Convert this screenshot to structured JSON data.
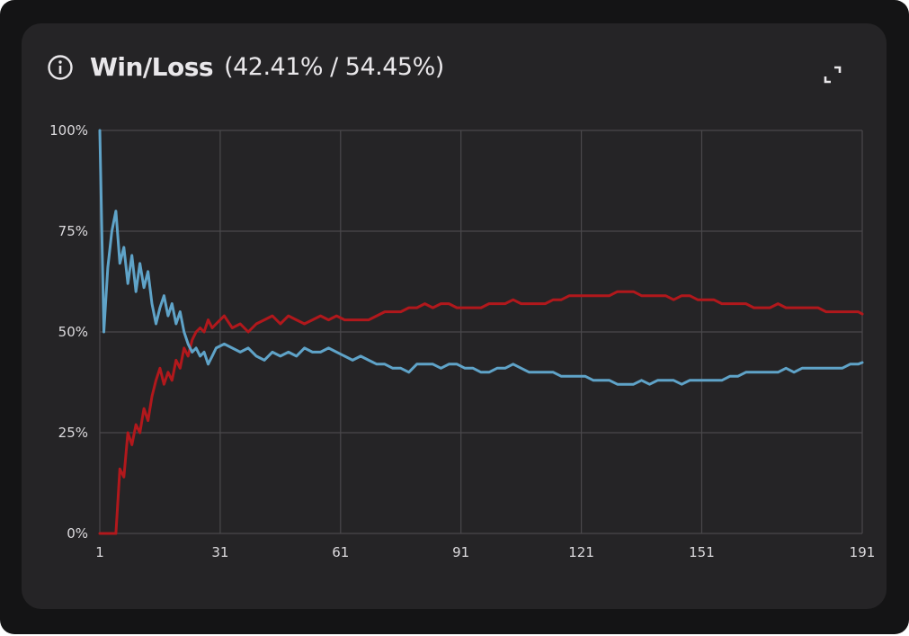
{
  "widget": {
    "title": "Win/Loss",
    "subtitle": "(42.41% / 54.45%)"
  },
  "colors": {
    "win": "#5fa3c8",
    "loss": "#b1181c",
    "grid": "#4a484b",
    "text": "#dcdadd"
  },
  "icons": {
    "info": "info-circle-icon",
    "expand": "expand-icon"
  },
  "chart_data": {
    "type": "line",
    "y_ticks": [
      "0%",
      "25%",
      "50%",
      "75%",
      "100%"
    ],
    "x_ticks": [
      "1",
      "31",
      "61",
      "91",
      "121",
      "151",
      "191"
    ],
    "ylim": [
      0,
      100
    ],
    "xlim": [
      1,
      191
    ],
    "grid": true,
    "series": [
      {
        "key": "win",
        "x": [
          1,
          2,
          3,
          4,
          5,
          6,
          7,
          8,
          9,
          10,
          11,
          12,
          13,
          14,
          15,
          16,
          17,
          18,
          19,
          20,
          21,
          22,
          23,
          24,
          25,
          26,
          27,
          28,
          29,
          30,
          32,
          34,
          36,
          38,
          40,
          42,
          44,
          46,
          48,
          50,
          52,
          54,
          56,
          58,
          60,
          62,
          64,
          66,
          68,
          70,
          72,
          74,
          76,
          78,
          80,
          82,
          84,
          86,
          88,
          90,
          92,
          94,
          96,
          98,
          100,
          102,
          104,
          106,
          108,
          110,
          112,
          114,
          116,
          118,
          120,
          122,
          124,
          126,
          128,
          130,
          132,
          134,
          136,
          138,
          140,
          142,
          144,
          146,
          148,
          150,
          152,
          154,
          156,
          158,
          160,
          162,
          164,
          166,
          168,
          170,
          172,
          174,
          176,
          178,
          180,
          182,
          184,
          186,
          188,
          190,
          191
        ],
        "values": [
          100,
          50,
          66,
          75,
          80,
          67,
          71,
          62,
          69,
          60,
          67,
          61,
          65,
          57,
          52,
          56,
          59,
          54,
          57,
          52,
          55,
          50,
          47,
          45,
          46,
          44,
          45,
          42,
          44,
          46,
          47,
          46,
          45,
          46,
          44,
          43,
          45,
          44,
          45,
          44,
          46,
          45,
          45,
          46,
          45,
          44,
          43,
          44,
          43,
          42,
          42,
          41,
          41,
          40,
          42,
          42,
          42,
          41,
          42,
          42,
          41,
          41,
          40,
          40,
          41,
          41,
          42,
          41,
          40,
          40,
          40,
          40,
          39,
          39,
          39,
          39,
          38,
          38,
          38,
          37,
          37,
          37,
          38,
          37,
          38,
          38,
          38,
          37,
          38,
          38,
          38,
          38,
          38,
          39,
          39,
          40,
          40,
          40,
          40,
          40,
          41,
          40,
          41,
          41,
          41,
          41,
          41,
          41,
          42,
          42,
          42.41
        ]
      },
      {
        "key": "loss",
        "x": [
          1,
          2,
          3,
          4,
          5,
          6,
          7,
          8,
          9,
          10,
          11,
          12,
          13,
          14,
          15,
          16,
          17,
          18,
          19,
          20,
          21,
          22,
          23,
          24,
          25,
          26,
          27,
          28,
          29,
          30,
          32,
          34,
          36,
          38,
          40,
          42,
          44,
          46,
          48,
          50,
          52,
          54,
          56,
          58,
          60,
          62,
          64,
          66,
          68,
          70,
          72,
          74,
          76,
          78,
          80,
          82,
          84,
          86,
          88,
          90,
          92,
          94,
          96,
          98,
          100,
          102,
          104,
          106,
          108,
          110,
          112,
          114,
          116,
          118,
          120,
          122,
          124,
          126,
          128,
          130,
          132,
          134,
          136,
          138,
          140,
          142,
          144,
          146,
          148,
          150,
          152,
          154,
          156,
          158,
          160,
          162,
          164,
          166,
          168,
          170,
          172,
          174,
          176,
          178,
          180,
          182,
          184,
          186,
          188,
          190,
          191
        ],
        "values": [
          0,
          0,
          0,
          0,
          0,
          16,
          14,
          25,
          22,
          27,
          25,
          31,
          28,
          34,
          38,
          41,
          37,
          40,
          38,
          43,
          41,
          46,
          44,
          48,
          50,
          51,
          50,
          53,
          51,
          52,
          54,
          51,
          52,
          50,
          52,
          53,
          54,
          52,
          54,
          53,
          52,
          53,
          54,
          53,
          54,
          53,
          53,
          53,
          53,
          54,
          55,
          55,
          55,
          56,
          56,
          57,
          56,
          57,
          57,
          56,
          56,
          56,
          56,
          57,
          57,
          57,
          58,
          57,
          57,
          57,
          57,
          58,
          58,
          59,
          59,
          59,
          59,
          59,
          59,
          60,
          60,
          60,
          59,
          59,
          59,
          59,
          58,
          59,
          59,
          58,
          58,
          58,
          57,
          57,
          57,
          57,
          56,
          56,
          56,
          57,
          56,
          56,
          56,
          56,
          56,
          55,
          55,
          55,
          55,
          55,
          54.45
        ]
      }
    ]
  }
}
